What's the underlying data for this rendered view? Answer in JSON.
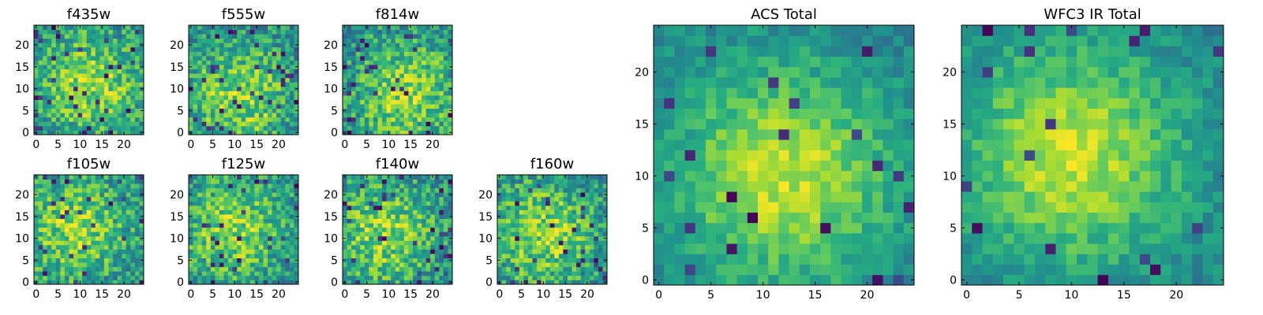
{
  "chart_data": [
    {
      "type": "heatmap",
      "title": "f435w",
      "xlim": [
        0,
        25
      ],
      "ylim": [
        0,
        25
      ],
      "xticks": [
        0,
        5,
        10,
        15,
        20
      ],
      "yticks": [
        0,
        5,
        10,
        15,
        20
      ],
      "grid": false,
      "colormap": "viridis",
      "style": "noisy",
      "seed": 11,
      "center": [
        12,
        11
      ]
    },
    {
      "type": "heatmap",
      "title": "f555w",
      "xlim": [
        0,
        25
      ],
      "ylim": [
        0,
        25
      ],
      "xticks": [
        0,
        5,
        10,
        15,
        20
      ],
      "yticks": [
        0,
        5,
        10,
        15,
        20
      ],
      "grid": false,
      "colormap": "viridis",
      "style": "noisy",
      "seed": 23,
      "center": [
        11,
        8
      ]
    },
    {
      "type": "heatmap",
      "title": "f814w",
      "xlim": [
        0,
        25
      ],
      "ylim": [
        0,
        25
      ],
      "xticks": [
        0,
        5,
        10,
        15,
        20
      ],
      "yticks": [
        0,
        5,
        10,
        15,
        20
      ],
      "grid": false,
      "colormap": "viridis",
      "style": "noisy",
      "seed": 37,
      "center": [
        14,
        9
      ]
    },
    {
      "type": "heatmap",
      "title": "f105w",
      "xlim": [
        0,
        25
      ],
      "ylim": [
        0,
        25
      ],
      "xticks": [
        0,
        5,
        10,
        15,
        20
      ],
      "yticks": [
        0,
        5,
        10,
        15,
        20
      ],
      "grid": false,
      "colormap": "viridis",
      "style": "noisy",
      "seed": 41,
      "center": [
        9,
        12
      ]
    },
    {
      "type": "heatmap",
      "title": "f125w",
      "xlim": [
        0,
        25
      ],
      "ylim": [
        0,
        25
      ],
      "xticks": [
        0,
        5,
        10,
        15,
        20
      ],
      "yticks": [
        0,
        5,
        10,
        15,
        20
      ],
      "grid": false,
      "colormap": "viridis",
      "style": "noisy",
      "seed": 53,
      "center": [
        10,
        12
      ]
    },
    {
      "type": "heatmap",
      "title": "f140w",
      "xlim": [
        0,
        25
      ],
      "ylim": [
        0,
        25
      ],
      "xticks": [
        0,
        5,
        10,
        15,
        20
      ],
      "yticks": [
        0,
        5,
        10,
        15,
        20
      ],
      "grid": false,
      "colormap": "viridis",
      "style": "noisy",
      "seed": 67,
      "center": [
        9,
        11
      ]
    },
    {
      "type": "heatmap",
      "title": "f160w",
      "xlim": [
        0,
        25
      ],
      "ylim": [
        0,
        25
      ],
      "xticks": [
        0,
        5,
        10,
        15,
        20
      ],
      "yticks": [
        0,
        5,
        10,
        15,
        20
      ],
      "grid": false,
      "colormap": "viridis",
      "style": "noisy",
      "seed": 79,
      "center": [
        10,
        11
      ]
    },
    {
      "type": "heatmap",
      "title": "ACS Total",
      "xlim": [
        0,
        25
      ],
      "ylim": [
        0,
        25
      ],
      "xticks": [
        0,
        5,
        10,
        15,
        20
      ],
      "yticks": [
        0,
        5,
        10,
        15,
        20
      ],
      "grid": false,
      "colormap": "viridis",
      "style": "smooth",
      "seed": 83,
      "center": [
        12,
        10
      ]
    },
    {
      "type": "heatmap",
      "title": "WFC3 IR Total",
      "xlim": [
        0,
        25
      ],
      "ylim": [
        0,
        25
      ],
      "xticks": [
        0,
        5,
        10,
        15,
        20
      ],
      "yticks": [
        0,
        5,
        10,
        15,
        20
      ],
      "grid": false,
      "colormap": "viridis",
      "style": "smooth",
      "seed": 97,
      "center": [
        10,
        12
      ]
    }
  ],
  "colors": {
    "viridis_low": "#440154",
    "viridis_mid": "#21918c",
    "viridis_high": "#fde725"
  }
}
